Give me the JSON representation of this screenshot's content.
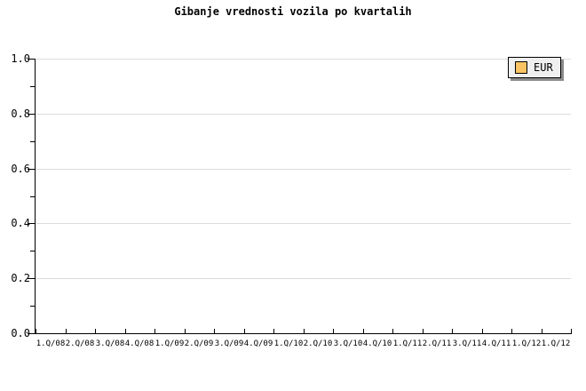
{
  "title": "Gibanje vrednosti vozila po kvartalih",
  "legend": {
    "label": "EUR",
    "swatch_color": "#fac464",
    "position": "top-right"
  },
  "colors": {
    "background": "#ffffff",
    "axis": "#000000",
    "grid": "#dcdcdc",
    "text": "#000000",
    "legend_background": "#efefef",
    "legend_shadow": "#8c8c8c",
    "series_eur": "#fac464"
  },
  "chart_data": {
    "type": "line",
    "title": "Gibanje vrednosti vozila po kvartalih",
    "xlabel": "",
    "ylabel": "",
    "x_categories": [
      "1.Q/08",
      "2.Q/08",
      "3.Q/08",
      "4.Q/08",
      "1.Q/09",
      "2.Q/09",
      "3.Q/09",
      "4.Q/09",
      "1.Q/10",
      "2.Q/10",
      "3.Q/10",
      "4.Q/10",
      "1.Q/11",
      "2.Q/11",
      "3.Q/11",
      "4.Q/11",
      "1.Q/12",
      "1.Q/12"
    ],
    "y_tick_labels": [
      "1.0",
      "0.8",
      "0.6",
      "0.4",
      "0.2",
      "0.0"
    ],
    "ylim": [
      0.0,
      1.0
    ],
    "y_major_step": 0.2,
    "y_minor_step": 0.1,
    "grid": "horizontal-major",
    "legend_position": "top-right",
    "legend_entries": [
      {
        "label": "EUR",
        "color": "#fac464"
      }
    ],
    "series": [
      {
        "name": "EUR",
        "values": []
      }
    ]
  }
}
